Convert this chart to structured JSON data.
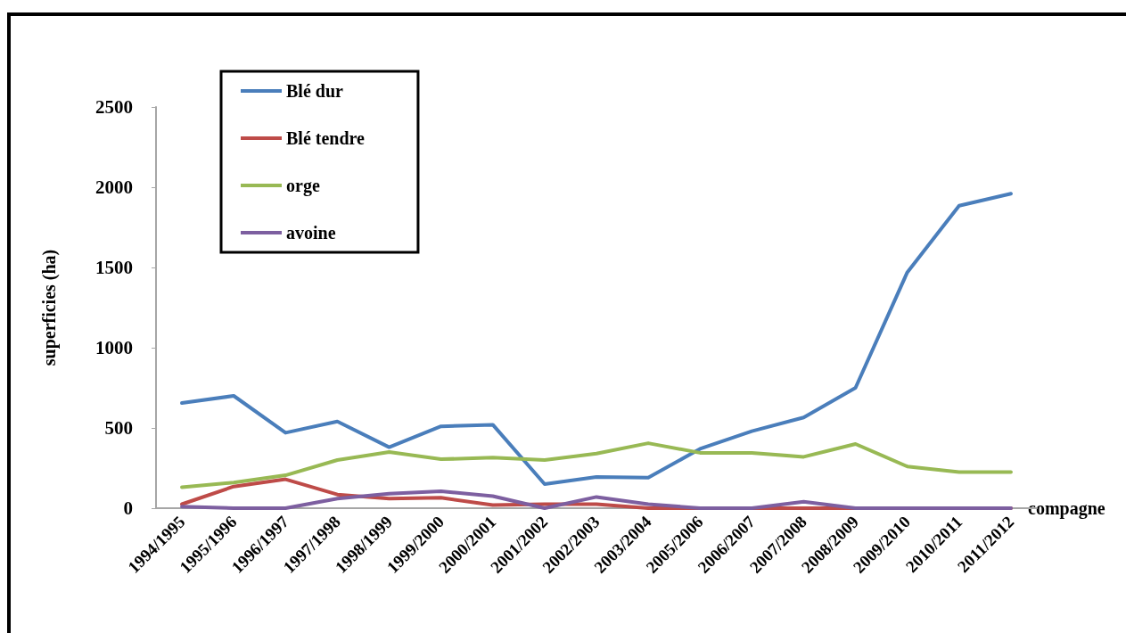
{
  "chart_data": {
    "type": "line",
    "xlabel": "compagne",
    "ylabel": "superficies (ha)",
    "categories": [
      "1994/1995",
      "1995/1996",
      "1996/1997",
      "1997/1998",
      "1998/1999",
      "1999/2000",
      "2000/2001",
      "2001/2002",
      "2002/2003",
      "2003/2004",
      "2005/2006",
      "2006/2007",
      "2007/2008",
      "2008/2009",
      "2009/2010",
      "2010/2011",
      "2011/2012"
    ],
    "series": [
      {
        "name": "Blé dur",
        "color": "#4a7ebb",
        "values": [
          655,
          700,
          470,
          540,
          380,
          510,
          520,
          150,
          195,
          190,
          370,
          480,
          565,
          750,
          1470,
          1885,
          1960
        ]
      },
      {
        "name": "Blé tendre",
        "color": "#be4b48",
        "values": [
          25,
          135,
          180,
          85,
          60,
          65,
          20,
          25,
          25,
          0,
          0,
          0,
          0,
          0,
          0,
          0,
          0
        ]
      },
      {
        "name": "orge",
        "color": "#98b954",
        "values": [
          130,
          160,
          205,
          300,
          350,
          305,
          315,
          300,
          340,
          405,
          345,
          345,
          320,
          400,
          260,
          225,
          225
        ]
      },
      {
        "name": "avoine",
        "color": "#7d5fa0",
        "values": [
          10,
          0,
          0,
          60,
          90,
          105,
          75,
          0,
          70,
          25,
          0,
          0,
          40,
          0,
          0,
          0,
          0
        ]
      }
    ],
    "ylim": [
      0,
      2500
    ],
    "yticks": [
      0,
      500,
      1000,
      1500,
      2000,
      2500
    ],
    "grid": false,
    "legend": "top left",
    "marker": "none",
    "line_style": "solid"
  }
}
